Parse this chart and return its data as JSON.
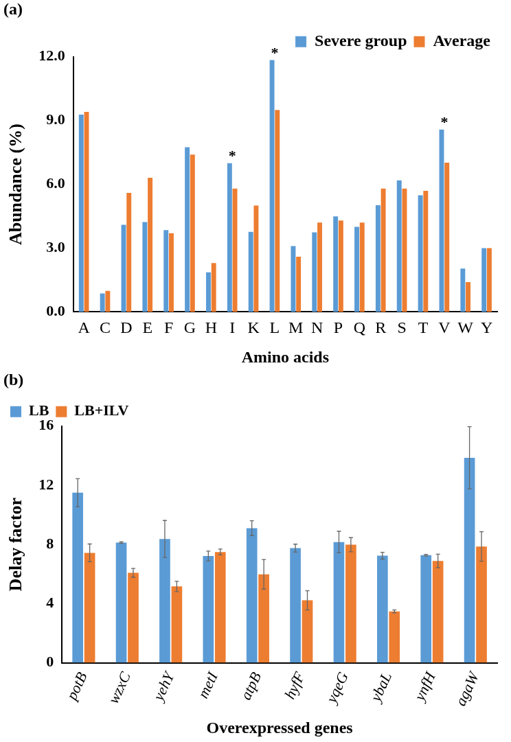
{
  "chart_data": [
    {
      "type": "bar",
      "title": "(a)",
      "xlabel": "Amino acids",
      "ylabel": "Abundance (%)",
      "categories": [
        "A",
        "C",
        "D",
        "E",
        "F",
        "G",
        "H",
        "I",
        "K",
        "L",
        "M",
        "N",
        "P",
        "Q",
        "R",
        "S",
        "T",
        "V",
        "W",
        "Y"
      ],
      "series": [
        {
          "name": "Severe group",
          "color": "#5b9bd5",
          "values": [
            9.28,
            0.87,
            4.1,
            4.23,
            3.85,
            7.75,
            1.86,
            7.0,
            3.77,
            11.85,
            3.1,
            3.74,
            4.49,
            4.0,
            5.02,
            6.19,
            5.49,
            8.58,
            2.04,
            3.0
          ]
        },
        {
          "name": "Average",
          "color": "#ed7d31",
          "values": [
            9.41,
            0.99,
            5.6,
            6.31,
            3.7,
            7.4,
            2.3,
            5.8,
            5.0,
            9.5,
            2.6,
            4.2,
            4.3,
            4.2,
            5.8,
            5.8,
            5.7,
            7.02,
            1.4,
            3.0
          ]
        }
      ],
      "ylim": [
        0,
        12
      ],
      "yticks": [
        {
          "value": 0,
          "label": "0.0"
        },
        {
          "value": 3,
          "label": "3.0"
        },
        {
          "value": 6,
          "label": "6.0"
        },
        {
          "value": 9,
          "label": "9.0"
        },
        {
          "value": 12,
          "label": "12.0"
        }
      ],
      "grid": false,
      "legend": "top right",
      "annotations": [
        {
          "text": "*",
          "x": "I",
          "y": 7.0
        },
        {
          "text": "*",
          "x": "L",
          "y": 11.85
        },
        {
          "text": "*",
          "x": "V",
          "y": 8.58
        }
      ]
    },
    {
      "type": "bar",
      "title": "(b)",
      "xlabel": "Overexpressed genes",
      "ylabel": "Delay factor",
      "categories": [
        "potB",
        "wzxC",
        "yehY",
        "metI",
        "atpB",
        "hyfF",
        "yqeG",
        "ybaL",
        "ynfH",
        "agaW"
      ],
      "series": [
        {
          "name": "LB",
          "color": "#5b9bd5",
          "values": [
            11.5,
            8.12,
            8.37,
            7.22,
            9.1,
            7.75,
            8.16,
            7.24,
            7.28,
            13.86
          ],
          "errors": [
            0.95,
            0.05,
            1.25,
            0.33,
            0.5,
            0.27,
            0.73,
            0.23,
            0.05,
            2.1
          ]
        },
        {
          "name": "LB+ILV",
          "color": "#ed7d31",
          "values": [
            7.43,
            6.08,
            5.16,
            7.49,
            5.98,
            4.22,
            7.98,
            3.47,
            6.88,
            7.86
          ],
          "errors": [
            0.6,
            0.3,
            0.35,
            0.2,
            1.0,
            0.65,
            0.48,
            0.1,
            0.46,
            1.0
          ]
        }
      ],
      "ylim": [
        0,
        16
      ],
      "yticks": [
        0,
        4,
        8,
        12,
        16
      ],
      "grid": false,
      "legend": "top left"
    }
  ]
}
